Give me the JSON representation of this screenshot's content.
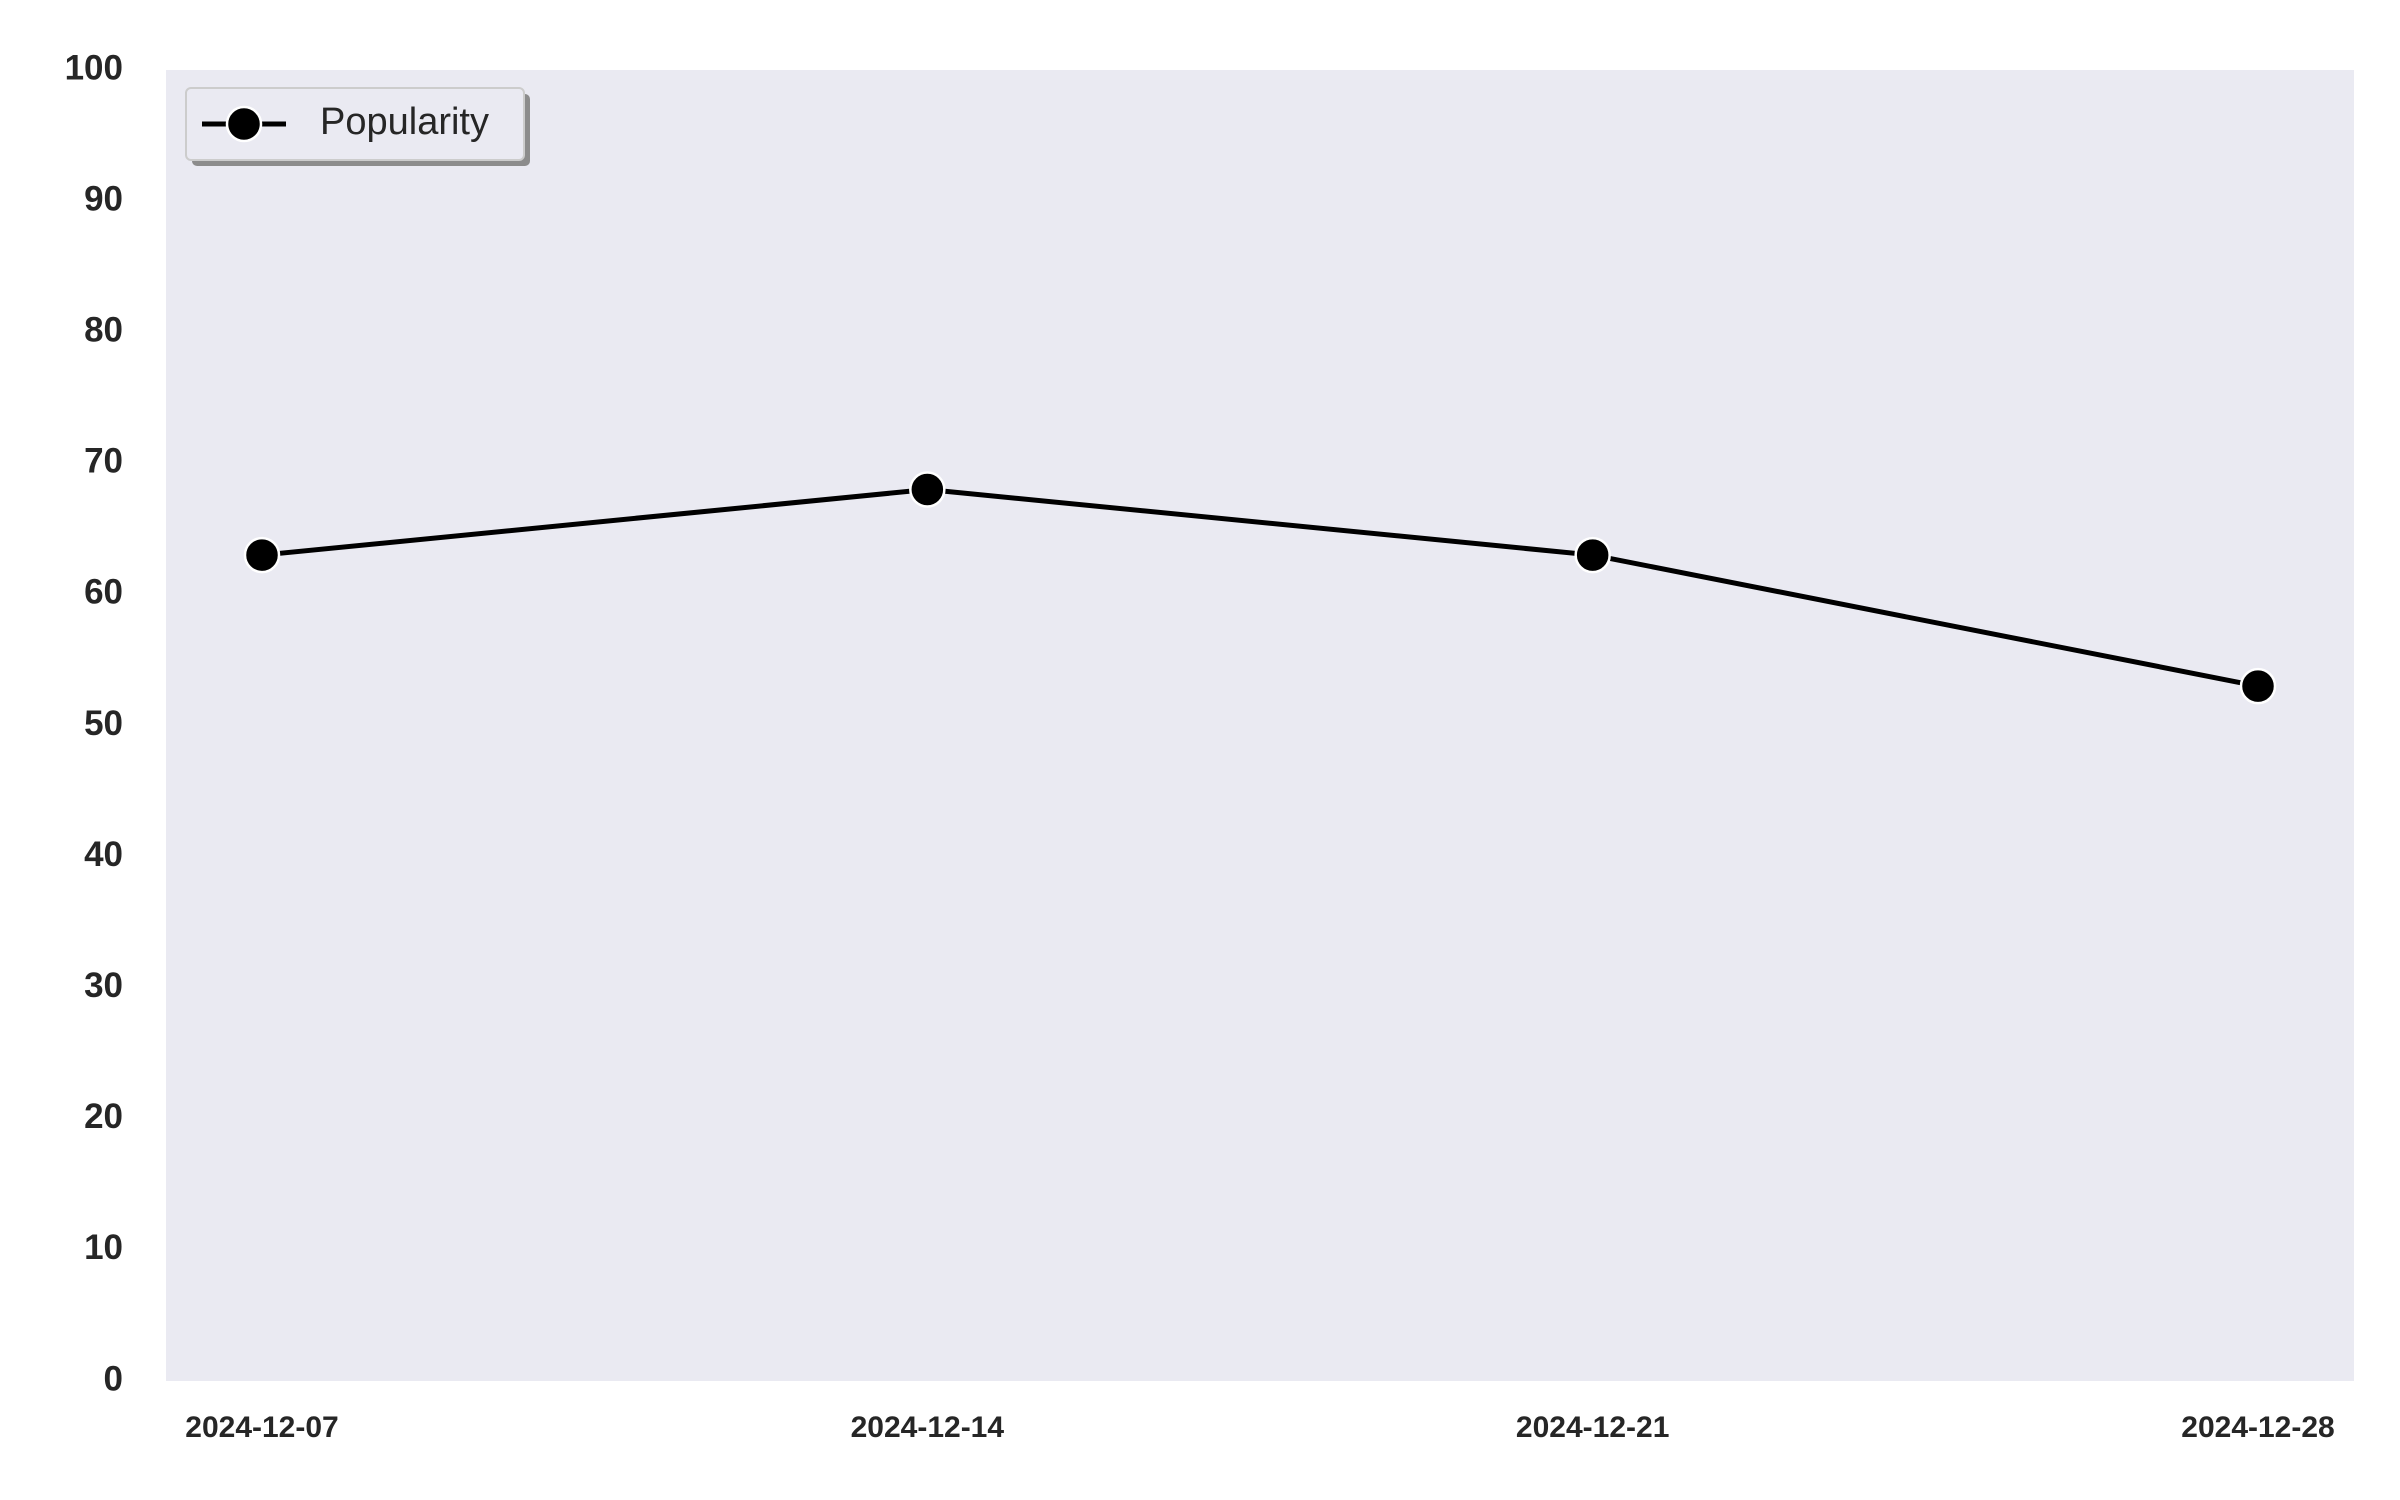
{
  "chart_data": {
    "type": "line",
    "title": "",
    "xlabel": "",
    "ylabel": "",
    "x": [
      "2024-12-07",
      "2024-12-14",
      "2024-12-21",
      "2024-12-28"
    ],
    "series": [
      {
        "name": "Popularity",
        "values": [
          63,
          68,
          63,
          53
        ],
        "color": "#000000",
        "marker": "circle"
      }
    ],
    "ylim": [
      0,
      100
    ],
    "yticks": [
      0,
      10,
      20,
      30,
      40,
      50,
      60,
      70,
      80,
      90,
      100
    ],
    "xtick_labels": [
      "2024-12-07",
      "2024-12-14",
      "2024-12-21",
      "2024-12-28"
    ],
    "grid": false,
    "legend": {
      "position": "top-left",
      "entries": [
        "Popularity"
      ]
    },
    "colors": {
      "plot_background": "#eaeaf2",
      "page_background": "#ffffff",
      "line": "#000000",
      "tick_text": "#262626"
    }
  }
}
